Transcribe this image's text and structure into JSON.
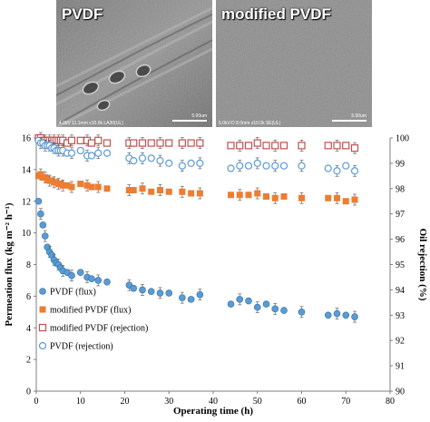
{
  "images": {
    "left": {
      "title": "PVDF",
      "info": "4.0kV 11.1mm x10.0k LA30(UL)",
      "scale_label": "5.00um"
    },
    "right": {
      "title": "modified PVDF",
      "info": "5.0kV-D 8.0mm x10.0k SE(UL)",
      "scale_label": "5.00um"
    }
  },
  "colors": {
    "blue": "#5B9BD5",
    "blue_dark": "#2E6DA4",
    "orange": "#ED7D31",
    "red": "#C0504D"
  },
  "chart_data": {
    "type": "scatter",
    "xlabel": "Operating time (h)",
    "ylabel_left": "Permeation flux (kg m⁻² h⁻¹)",
    "ylabel_right": "Oil rejection (%)",
    "xlim": [
      0,
      80
    ],
    "ylim_left": [
      0,
      16
    ],
    "ylim_right": [
      90,
      100
    ],
    "x_ticks": [
      "0",
      "10",
      "20",
      "30",
      "40",
      "50",
      "60",
      "70",
      "80"
    ],
    "y_left_ticks": [
      "0",
      "2",
      "4",
      "6",
      "8",
      "10",
      "12",
      "14",
      "16"
    ],
    "y_right_ticks": [
      "90",
      "91",
      "92",
      "93",
      "94",
      "95",
      "96",
      "97",
      "98",
      "99",
      "100"
    ],
    "grid": false,
    "legend_placement": "bottom-left",
    "series": [
      {
        "name": "PVDF (flux)",
        "axis": "left",
        "marker": "circle-filled",
        "color": "#5B9BD5",
        "x": [
          0.5,
          1,
          1.5,
          2,
          2.5,
          3,
          3.5,
          4,
          4.5,
          5,
          5.5,
          6,
          7,
          8,
          10,
          11.5,
          12.5,
          14,
          16,
          21,
          22,
          24,
          26,
          28,
          30,
          33,
          35,
          37,
          44,
          46,
          48,
          50,
          52,
          54,
          56,
          60,
          66,
          68,
          70,
          72
        ],
        "y": [
          12.0,
          11.2,
          10.5,
          9.8,
          9.1,
          8.8,
          8.6,
          8.3,
          8.1,
          8.0,
          7.8,
          7.6,
          7.5,
          7.3,
          7.5,
          7.2,
          7.1,
          7.0,
          6.9,
          6.7,
          6.5,
          6.4,
          6.3,
          6.2,
          6.2,
          5.9,
          5.8,
          6.1,
          5.5,
          5.8,
          5.7,
          5.3,
          5.5,
          5.2,
          5.1,
          5.0,
          4.8,
          4.9,
          4.8,
          4.7
        ]
      },
      {
        "name": "modified PVDF (flux)",
        "axis": "left",
        "marker": "square-filled",
        "color": "#ED7D31",
        "x": [
          0.5,
          1,
          1.5,
          2,
          2.5,
          3,
          3.5,
          4,
          4.5,
          5,
          5.5,
          6,
          7,
          8,
          10,
          11.5,
          12.5,
          14,
          16,
          21,
          22,
          24,
          26,
          28,
          30,
          33,
          35,
          37,
          44,
          46,
          48,
          50,
          52,
          54,
          56,
          60,
          66,
          68,
          70,
          72
        ],
        "y": [
          13.6,
          13.7,
          13.5,
          13.5,
          13.4,
          13.3,
          13.3,
          13.2,
          13.2,
          13.1,
          13.1,
          13.0,
          13.0,
          12.9,
          13.1,
          13.0,
          12.9,
          12.9,
          12.8,
          12.7,
          12.7,
          12.8,
          12.6,
          12.7,
          12.6,
          12.6,
          12.5,
          12.5,
          12.4,
          12.4,
          12.4,
          12.5,
          12.3,
          12.2,
          12.3,
          12.2,
          12.2,
          12.2,
          12.0,
          12.1
        ]
      },
      {
        "name": "modified PVDF (rejection)",
        "axis": "right",
        "marker": "square-open",
        "color": "#C0504D",
        "x": [
          0.5,
          1,
          1.5,
          2,
          2.5,
          3,
          3.5,
          4,
          4.5,
          5,
          5.5,
          6,
          7,
          8,
          10,
          11.5,
          12.5,
          14,
          16,
          21,
          22,
          24,
          26,
          28,
          30,
          33,
          35,
          37,
          44,
          46,
          48,
          50,
          52,
          54,
          56,
          60,
          66,
          68,
          70,
          72
        ],
        "y": [
          100.0,
          100.0,
          99.9,
          99.9,
          99.9,
          99.9,
          99.9,
          99.9,
          99.9,
          99.9,
          99.9,
          99.9,
          99.8,
          99.9,
          99.9,
          99.9,
          99.8,
          99.9,
          99.8,
          99.8,
          99.8,
          99.8,
          99.8,
          99.8,
          99.8,
          99.8,
          99.8,
          99.8,
          99.7,
          99.7,
          99.7,
          99.8,
          99.7,
          99.7,
          99.7,
          99.7,
          99.7,
          99.7,
          99.7,
          99.6
        ]
      },
      {
        "name": "PVDF (rejection)",
        "axis": "right",
        "marker": "circle-open",
        "color": "#5B9BD5",
        "x": [
          0.5,
          1,
          1.5,
          2,
          2.5,
          3,
          3.5,
          4,
          4.5,
          5,
          5.5,
          6,
          7,
          8,
          10,
          11.5,
          12.5,
          14,
          16,
          21,
          22,
          24,
          26,
          28,
          30,
          33,
          35,
          37,
          44,
          46,
          48,
          50,
          52,
          54,
          56,
          60,
          66,
          68,
          70,
          72
        ],
        "y": [
          99.9,
          99.8,
          99.8,
          99.7,
          99.7,
          99.7,
          99.6,
          99.6,
          99.5,
          99.5,
          99.5,
          99.5,
          99.4,
          99.4,
          99.5,
          99.3,
          99.3,
          99.4,
          99.4,
          99.2,
          99.1,
          99.2,
          99.2,
          99.1,
          99.0,
          98.9,
          99.0,
          99.0,
          98.8,
          98.9,
          98.9,
          99.0,
          98.9,
          98.9,
          98.9,
          98.9,
          98.8,
          98.7,
          98.9,
          98.7
        ]
      }
    ]
  }
}
